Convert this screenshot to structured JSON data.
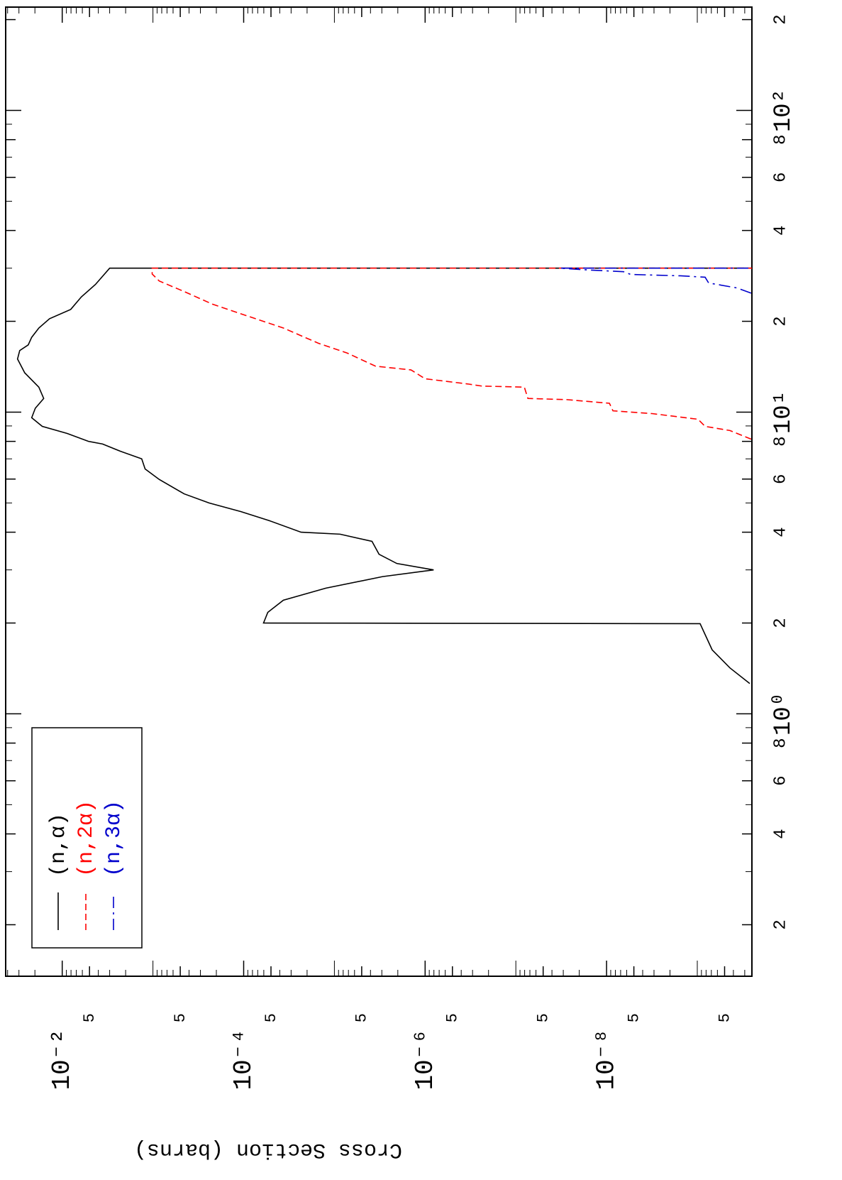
{
  "chart_data": {
    "type": "line",
    "ylabel": "Cross Section (barns)",
    "xscale": "log",
    "yscale": "log",
    "xlim": [
      0.135,
      220
    ],
    "ylim": [
      2.5e-10,
      0.042
    ],
    "xticks": [
      {
        "value": 0.2,
        "label": "2"
      },
      {
        "value": 0.4,
        "label": "4"
      },
      {
        "value": 0.6,
        "label": "6"
      },
      {
        "value": 0.8,
        "label": "8"
      },
      {
        "value": 1,
        "label": "10⁰"
      },
      2,
      4,
      6,
      8,
      {
        "value": 10,
        "label": "10¹"
      },
      {
        "value": 20,
        "label": "2"
      },
      {
        "value": 40,
        "label": "4"
      },
      {
        "value": 60,
        "label": "6"
      },
      {
        "value": 80,
        "label": "8"
      },
      {
        "value": 100,
        "label": "10²"
      },
      {
        "value": 200,
        "label": "2"
      }
    ],
    "xminorticks": [
      0.3,
      0.5,
      0.7,
      0.9,
      3,
      5,
      7,
      9,
      30,
      50,
      70,
      90
    ],
    "yticks": [
      {
        "value": 0.01,
        "label": "10⁻²"
      },
      {
        "value": 0.005,
        "label": "5"
      },
      {
        "value": 0.0005,
        "label": "5"
      },
      {
        "value": 0.0001,
        "label": "10⁻⁴"
      },
      {
        "value": 5e-05,
        "label": "5"
      },
      {
        "value": 5e-06,
        "label": "5"
      },
      {
        "value": 1e-06,
        "label": "10⁻⁶"
      },
      {
        "value": 5e-07,
        "label": "5"
      },
      {
        "value": 5e-08,
        "label": "5"
      },
      {
        "value": 1e-08,
        "label": "10⁻⁸"
      },
      {
        "value": 5e-09,
        "label": "5"
      },
      {
        "value": 5e-10,
        "label": "5"
      }
    ],
    "yminorticks": [
      0.04,
      0.03,
      0.02,
      0.009,
      0.008,
      0.007,
      0.006,
      0.004,
      0.003,
      0.002,
      0.001,
      0.0009,
      0.0008,
      0.0007,
      0.0006,
      0.0004,
      0.0003,
      0.0002,
      9e-05,
      8e-05,
      7e-05,
      6e-05,
      4e-05,
      3e-05,
      2e-05,
      1e-05,
      9e-06,
      8e-06,
      7e-06,
      6e-06,
      4e-06,
      3e-06,
      2e-06,
      9e-07,
      8e-07,
      7e-07,
      6e-07,
      4e-07,
      3e-07,
      2e-07,
      1e-07,
      9e-08,
      8e-08,
      7e-08,
      6e-08,
      4e-08,
      3e-08,
      2e-08,
      9e-09,
      8e-09,
      7e-09,
      6e-09,
      4e-09,
      3e-09,
      2e-09,
      1e-09,
      9e-10,
      8e-10,
      7e-10,
      6e-10,
      4e-10,
      3e-10
    ],
    "series": [
      {
        "name": "(n,α)",
        "color": "#000000",
        "dash": "solid",
        "x": [
          1.26,
          1.42,
          1.63,
          1.99,
          2.0,
          2.17,
          2.38,
          2.61,
          2.85,
          3.0,
          3.15,
          3.38,
          3.73,
          3.94,
          4.0,
          4.37,
          4.68,
          5.0,
          5.36,
          5.98,
          6.48,
          7.0,
          7.42,
          7.84,
          8.0,
          8.5,
          8.97,
          9.58,
          10.3,
          11.1,
          12.1,
          13.5,
          15.0,
          16.0,
          16.7,
          17.7,
          19.0,
          20.4,
          21.9,
          24.1,
          26.5,
          30,
          30
        ],
        "values": [
          2.64e-10,
          4.37e-10,
          6.86e-10,
          9.31e-10,
          6.04e-05,
          5.42e-05,
          3.65e-05,
          1.24e-05,
          2.94e-06,
          8.06e-07,
          2.05e-06,
          3.22e-06,
          3.85e-06,
          8.66e-06,
          2.33e-05,
          5.24e-05,
          0.000107,
          0.000241,
          0.000453,
          0.000851,
          0.00122,
          0.00133,
          0.00229,
          0.00359,
          0.00514,
          0.00882,
          0.0166,
          0.0217,
          0.0198,
          0.016,
          0.0181,
          0.0259,
          0.0311,
          0.0294,
          0.0237,
          0.0217,
          0.0181,
          0.0138,
          0.00806,
          0.00615,
          0.0043,
          0.003,
          2.5e-10
        ]
      },
      {
        "name": "(n,2α)",
        "color": "#ff0000",
        "dash": "dashed",
        "x": [
          8.14,
          8.69,
          8.97,
          9.47,
          9.89,
          10.1,
          10.7,
          11.0,
          11.1,
          12.1,
          12.2,
          12.4,
          12.9,
          13.8,
          14.2,
          15.7,
          16.9,
          19.0,
          20.8,
          22.8,
          25.1,
          27.2,
          28.7,
          30,
          30
        ],
        "values": [
          2.55e-10,
          4.37e-10,
          8.2e-10,
          9.8e-10,
          3.16e-09,
          8.5e-09,
          9.3e-09,
          2.74e-08,
          7.36e-08,
          8.06e-08,
          2.37e-07,
          3.4e-07,
          1e-06,
          1.43e-06,
          3.52e-06,
          7.23e-06,
          1.49e-05,
          3.65e-05,
          8.97e-05,
          0.000221,
          0.000453,
          0.000851,
          0.00102,
          0.00102,
          2.5e-10
        ]
      },
      {
        "name": "(n,3α)",
        "color": "#0000cc",
        "dash": "dashdot",
        "x": [
          24.8,
          25.8,
          26.8,
          28.0,
          28.3,
          28.6,
          29.2,
          29.6,
          30,
          30
        ],
        "values": [
          2.55e-10,
          3.65e-10,
          7.5e-10,
          8.2e-10,
          1.54e-09,
          5.42e-09,
          6.49e-09,
          1.6e-08,
          3.28e-08,
          2.5e-10
        ]
      }
    ],
    "legend": "upper left"
  }
}
